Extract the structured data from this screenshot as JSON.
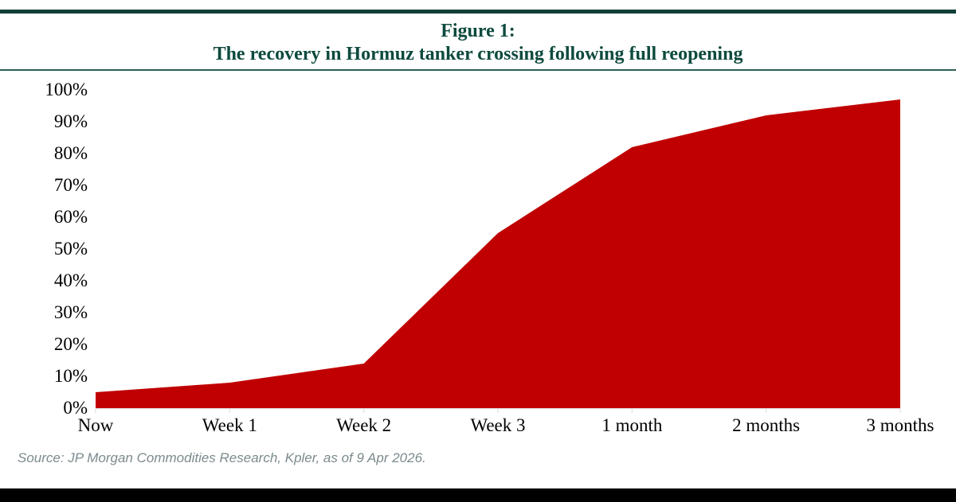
{
  "header": {
    "title_line1": "Figure 1:",
    "title_line2": "The recovery in Hormuz tanker crossing following full reopening",
    "accent_color": "#0d4a3e"
  },
  "chart_data": {
    "type": "area",
    "title": "Figure 1: The recovery in Hormuz tanker crossing following full reopening",
    "categories": [
      "Now",
      "Week 1",
      "Week 2",
      "Week 3",
      "1 month",
      "2 months",
      "3 months"
    ],
    "values": [
      5,
      8,
      14,
      55,
      82,
      92,
      97
    ],
    "xlabel": "",
    "ylabel": "",
    "ylim": [
      0,
      100
    ],
    "ytick_values": [
      0,
      10,
      20,
      30,
      40,
      50,
      60,
      70,
      80,
      90,
      100
    ],
    "ytick_suffix": "%",
    "fill_color": "#c00000",
    "axis_color": "#d9d9d9",
    "grid": false,
    "legend": "none"
  },
  "footer": {
    "source": "Source: JP Morgan Commodities Research, Kpler, as of 9 Apr 2026."
  }
}
